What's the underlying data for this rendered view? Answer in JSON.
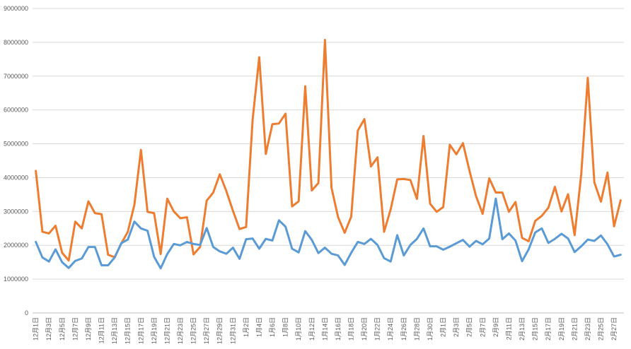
{
  "chart_data": {
    "type": "line",
    "title": "",
    "xlabel": "",
    "ylabel": "",
    "ylim": [
      0,
      9000000
    ],
    "yticks": [
      0,
      1000000,
      2000000,
      3000000,
      4000000,
      5000000,
      6000000,
      7000000,
      8000000,
      9000000
    ],
    "ytick_labels": [
      "0",
      "1000000",
      "2000000",
      "3000000",
      "4000000",
      "5000000",
      "6000000",
      "7000000",
      "8000000",
      "9000000"
    ],
    "grid": true,
    "legend": "none",
    "x": [
      "12月1日",
      "12月2日",
      "12月3日",
      "12月4日",
      "12月5日",
      "12月6日",
      "12月7日",
      "12月8日",
      "12月9日",
      "12月10日",
      "12月11日",
      "12月12日",
      "12月13日",
      "12月14日",
      "12月15日",
      "12月16日",
      "12月17日",
      "12月18日",
      "12月19日",
      "12月20日",
      "12月21日",
      "12月22日",
      "12月23日",
      "12月24日",
      "12月25日",
      "12月26日",
      "12月27日",
      "12月28日",
      "12月29日",
      "12月30日",
      "12月31日",
      "1月1日",
      "1月2日",
      "1月3日",
      "1月4日",
      "1月5日",
      "1月6日",
      "1月7日",
      "1月8日",
      "1月9日",
      "1月10日",
      "1月11日",
      "1月12日",
      "1月13日",
      "1月14日",
      "1月15日",
      "1月16日",
      "1月17日",
      "1月18日",
      "1月19日",
      "1月20日",
      "1月21日",
      "1月22日",
      "1月23日",
      "1月24日",
      "1月25日",
      "1月26日",
      "1月27日",
      "1月28日",
      "1月29日",
      "1月30日",
      "1月31日",
      "2月1日",
      "2月2日",
      "2月3日",
      "2月4日",
      "2月5日",
      "2月6日",
      "2月7日",
      "2月8日",
      "2月9日",
      "2月10日",
      "2月11日",
      "2月12日",
      "2月13日",
      "2月14日",
      "2月15日",
      "2月16日",
      "2月17日",
      "2月18日",
      "2月19日",
      "2月20日",
      "2月21日",
      "2月22日",
      "2月23日",
      "2月24日",
      "2月25日",
      "2月26日",
      "2月27日",
      "2月28日"
    ],
    "x_tick_labels": [
      "12月1日",
      "12月3日",
      "12月5日",
      "12月7日",
      "12月9日",
      "12月11日",
      "12月13日",
      "12月15日",
      "12月17日",
      "12月19日",
      "12月21日",
      "12月23日",
      "12月25日",
      "12月27日",
      "12月29日",
      "12月31日",
      "1月2日",
      "1月4日",
      "1月6日",
      "1月8日",
      "1月10日",
      "1月12日",
      "1月14日",
      "1月16日",
      "1月18日",
      "1月20日",
      "1月22日",
      "1月24日",
      "1月26日",
      "1月28日",
      "1月30日",
      "2月1日",
      "2月3日",
      "2月5日",
      "2月7日",
      "2月9日",
      "2月11日",
      "2月13日",
      "2月15日",
      "2月17日",
      "2月19日",
      "2月21日",
      "2月23日",
      "2月25日",
      "2月27日"
    ],
    "series": [
      {
        "color": "#ED7D31",
        "values": [
          4200000,
          2400000,
          2350000,
          2580000,
          1780000,
          1550000,
          2700000,
          2500000,
          3300000,
          2950000,
          2920000,
          1720000,
          1650000,
          2050000,
          2400000,
          3200000,
          4820000,
          2990000,
          2950000,
          1740000,
          3380000,
          3000000,
          2800000,
          2830000,
          1730000,
          1950000,
          3320000,
          3560000,
          4100000,
          3600000,
          3020000,
          2480000,
          2540000,
          5730000,
          7560000,
          4700000,
          5580000,
          5600000,
          5890000,
          3150000,
          3300000,
          6700000,
          3620000,
          3840000,
          8070000,
          3700000,
          2830000,
          2370000,
          2850000,
          5390000,
          5730000,
          4330000,
          4600000,
          2400000,
          3060000,
          3950000,
          3960000,
          3930000,
          3370000,
          5230000,
          3230000,
          2990000,
          3130000,
          4970000,
          4690000,
          5020000,
          4200000,
          3450000,
          2930000,
          3980000,
          3560000,
          3560000,
          2990000,
          3280000,
          2220000,
          2120000,
          2720000,
          2870000,
          3110000,
          3730000,
          3000000,
          3510000,
          2300000,
          4090000,
          6950000,
          3860000,
          3290000,
          4150000,
          2560000,
          3330000
        ]
      },
      {
        "color": "#5B9BD5",
        "values": [
          2100000,
          1640000,
          1520000,
          1880000,
          1500000,
          1330000,
          1540000,
          1610000,
          1950000,
          1950000,
          1410000,
          1410000,
          1640000,
          2060000,
          2170000,
          2700000,
          2500000,
          2430000,
          1660000,
          1320000,
          1740000,
          2040000,
          2000000,
          2100000,
          2040000,
          2010000,
          2510000,
          1950000,
          1820000,
          1750000,
          1930000,
          1600000,
          2180000,
          2200000,
          1900000,
          2190000,
          2140000,
          2740000,
          2550000,
          1900000,
          1790000,
          2420000,
          2160000,
          1770000,
          1930000,
          1750000,
          1700000,
          1420000,
          1780000,
          2100000,
          2040000,
          2190000,
          2010000,
          1620000,
          1520000,
          2300000,
          1700000,
          2010000,
          2190000,
          2500000,
          1970000,
          1970000,
          1870000,
          1960000,
          2060000,
          2160000,
          1960000,
          2130000,
          2030000,
          2200000,
          3380000,
          2180000,
          2350000,
          2140000,
          1530000,
          1880000,
          2380000,
          2500000,
          2070000,
          2190000,
          2340000,
          2200000,
          1800000,
          1970000,
          2170000,
          2130000,
          2290000,
          2030000,
          1670000,
          1720000
        ]
      }
    ]
  }
}
